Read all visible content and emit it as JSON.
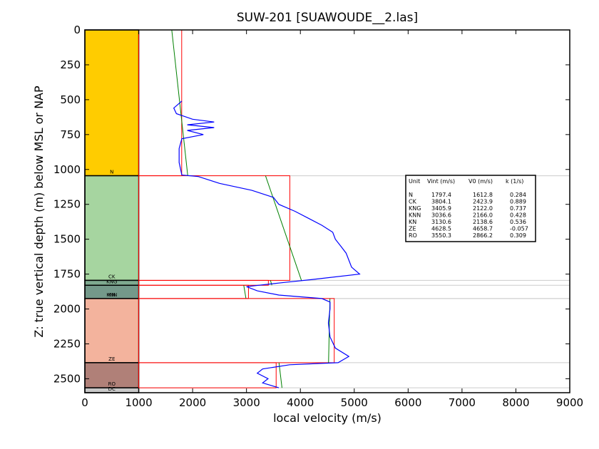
{
  "chart_data": {
    "type": "line",
    "title": "SUW-201 [SUAWOUDE__2.las]",
    "xlabel": "local velocity (m/s)",
    "ylabel": "Z: true vertical depth (m) below MSL or NAP",
    "xlim": [
      0,
      9000
    ],
    "ylim": [
      2600,
      0
    ],
    "xticks": [
      "0",
      "1000",
      "2000",
      "3000",
      "4000",
      "5000",
      "6000",
      "7000",
      "8000",
      "9000"
    ],
    "yticks": [
      "0",
      "250",
      "500",
      "750",
      "1000",
      "1250",
      "1500",
      "1750",
      "2000",
      "2250",
      "2500"
    ],
    "stratigraphy": [
      {
        "unit": "N",
        "top": 0,
        "base": 1045,
        "color": "#ffcc00"
      },
      {
        "unit": "CK",
        "top": 1045,
        "base": 1795,
        "color": "#a6d5a0"
      },
      {
        "unit": "KNG",
        "top": 1795,
        "base": 1830,
        "color": "#7faa90"
      },
      {
        "unit": "KNN",
        "top": 1830,
        "base": 1925,
        "color": "#74998a"
      },
      {
        "unit": "KN",
        "top": 1925,
        "base": 1925,
        "color": "#74998a"
      },
      {
        "unit": "ZE",
        "top": 1925,
        "base": 2385,
        "color": "#f3b39d"
      },
      {
        "unit": "RO",
        "top": 2385,
        "base": 2565,
        "color": "#b08078"
      },
      {
        "unit": "DC",
        "top": 2565,
        "base": 2600,
        "color": "#c8c8c8"
      }
    ],
    "interval_velocity": [
      {
        "unit": "N",
        "top": 0,
        "base": 1045,
        "vint": 1797.4,
        "v0": 1612.8,
        "k": 0.284
      },
      {
        "unit": "CK",
        "top": 1045,
        "base": 1795,
        "vint": 3804.1,
        "v0": 2423.9,
        "k": 0.889
      },
      {
        "unit": "KNG",
        "top": 1795,
        "base": 1830,
        "vint": 3405.9,
        "v0": 2122.0,
        "k": 0.737
      },
      {
        "unit": "KNN",
        "top": 1830,
        "base": 1925,
        "vint": 3036.6,
        "v0": 2166.0,
        "k": 0.428
      },
      {
        "unit": "KN",
        "top": 1925,
        "base": 1925,
        "vint": 3130.6,
        "v0": 2138.6,
        "k": 0.536
      },
      {
        "unit": "ZE",
        "top": 1925,
        "base": 2385,
        "vint": 4628.5,
        "v0": 4658.7,
        "k": -0.057
      },
      {
        "unit": "RO",
        "top": 2385,
        "base": 2565,
        "vint": 3550.3,
        "v0": 2866.2,
        "k": 0.309
      }
    ],
    "log_trend": [
      [
        510,
        1800
      ],
      [
        560,
        1650
      ],
      [
        600,
        1700
      ],
      [
        640,
        2000
      ],
      [
        660,
        2400
      ],
      [
        680,
        1900
      ],
      [
        700,
        2400
      ],
      [
        720,
        1900
      ],
      [
        750,
        2200
      ],
      [
        780,
        1800
      ],
      [
        850,
        1750
      ],
      [
        950,
        1750
      ],
      [
        1040,
        1800
      ],
      [
        1050,
        2100
      ],
      [
        1100,
        2500
      ],
      [
        1150,
        3100
      ],
      [
        1200,
        3500
      ],
      [
        1250,
        3600
      ],
      [
        1300,
        3900
      ],
      [
        1350,
        4150
      ],
      [
        1400,
        4400
      ],
      [
        1450,
        4600
      ],
      [
        1500,
        4650
      ],
      [
        1550,
        4750
      ],
      [
        1600,
        4850
      ],
      [
        1650,
        4900
      ],
      [
        1700,
        4950
      ],
      [
        1750,
        5100
      ],
      [
        1790,
        4200
      ],
      [
        1810,
        3700
      ],
      [
        1840,
        3000
      ],
      [
        1870,
        3200
      ],
      [
        1900,
        3600
      ],
      [
        1925,
        4400
      ],
      [
        1950,
        4550
      ],
      [
        2000,
        4550
      ],
      [
        2100,
        4520
      ],
      [
        2200,
        4550
      ],
      [
        2280,
        4650
      ],
      [
        2340,
        4900
      ],
      [
        2385,
        4700
      ],
      [
        2400,
        3800
      ],
      [
        2430,
        3300
      ],
      [
        2460,
        3200
      ],
      [
        2500,
        3400
      ],
      [
        2530,
        3300
      ],
      [
        2565,
        3600
      ]
    ],
    "legend_table": {
      "header": [
        "Unit",
        "Vint (m/s)",
        "V0 (m/s)",
        "k (1/s)"
      ],
      "rows": [
        [
          "N",
          "1797.4",
          "1612.8",
          "0.284"
        ],
        [
          "CK",
          "3804.1",
          "2423.9",
          "0.889"
        ],
        [
          "KNG",
          "3405.9",
          "2122.0",
          "0.737"
        ],
        [
          "KNN",
          "3036.6",
          "2166.0",
          "0.428"
        ],
        [
          "KN",
          "3130.6",
          "2138.6",
          "0.536"
        ],
        [
          "ZE",
          "4628.5",
          "4658.7",
          "-0.057"
        ],
        [
          "RO",
          "3550.3",
          "2866.2",
          "0.309"
        ]
      ]
    },
    "colors": {
      "log": "#0000ff",
      "vint": "#ff0000",
      "v0k": "#008000",
      "boundary": "#cccccc"
    }
  }
}
